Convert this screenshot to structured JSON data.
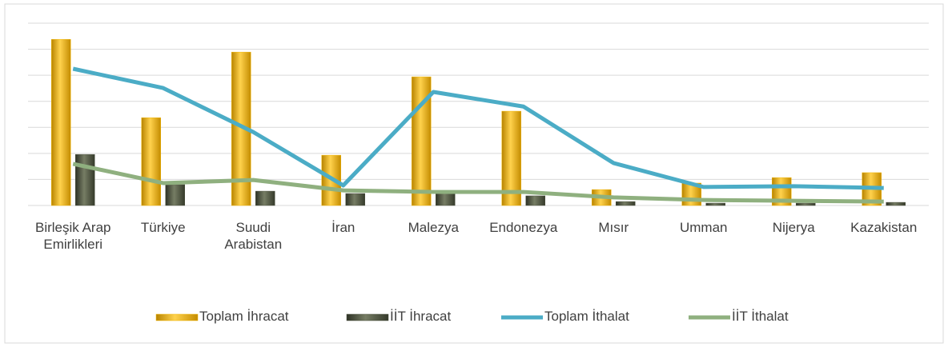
{
  "chart_data": {
    "type": "bar_line",
    "categories": [
      "Birleşik Arap Emirlikleri",
      "Türkiye",
      "Suudi Arabistan",
      "İran",
      "Malezya",
      "Endonezya",
      "Mısır",
      "Umman",
      "Nijerya",
      "Kazakistan"
    ],
    "ylim": [
      0,
      7
    ],
    "yticks": [
      0,
      1,
      2,
      3,
      4,
      5,
      6,
      7
    ],
    "grid": true,
    "series": [
      {
        "name": "Toplam İhracat",
        "kind": "bar",
        "color": "#f0b400",
        "values": [
          6.38,
          3.37,
          5.89,
          1.93,
          4.94,
          3.62,
          0.61,
          0.86,
          1.07,
          1.26
        ]
      },
      {
        "name": "İİT İhracat",
        "kind": "bar",
        "color": "#4e5340",
        "values": [
          1.96,
          0.8,
          0.55,
          0.46,
          0.49,
          0.37,
          0.15,
          0.09,
          0.09,
          0.12
        ]
      },
      {
        "name": "Toplam İthalat",
        "kind": "line",
        "color": "#4bacc6",
        "values": [
          5.25,
          4.51,
          2.82,
          0.77,
          4.36,
          3.8,
          1.63,
          0.71,
          0.74,
          0.67
        ]
      },
      {
        "name": "İİT İthalat",
        "kind": "line",
        "color": "#8fb07f",
        "values": [
          1.6,
          0.86,
          0.98,
          0.58,
          0.52,
          0.52,
          0.31,
          0.21,
          0.18,
          0.15
        ]
      }
    ]
  }
}
